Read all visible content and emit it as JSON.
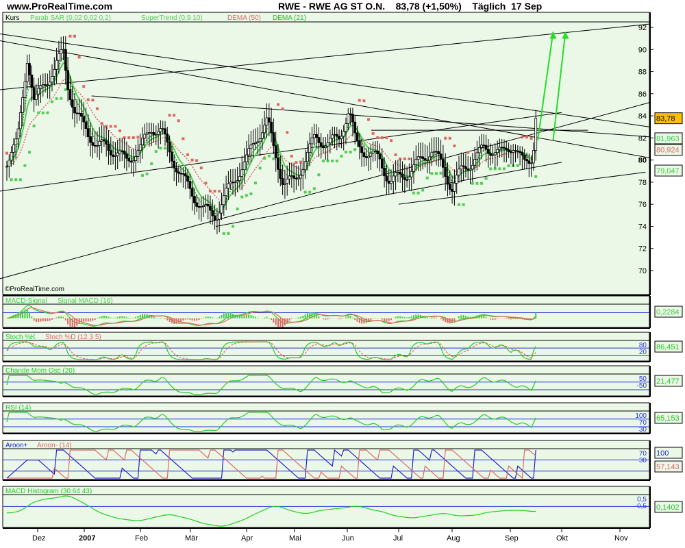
{
  "header": {
    "site": "www.ProRealTime.com",
    "title": "RWE - RWE AG ST O.N.    83,78 (+1,50%)    Täglich  17 Sep"
  },
  "watermark": "©ProRealTime.com",
  "main_legend": [
    {
      "text": "Kurs",
      "color": "#000000"
    },
    {
      "text": "Parab SAR (0,02 0,02 0,2)",
      "color": "#55cc55"
    },
    {
      "text": "SuperTrend (0,9 10)",
      "color": "#55cc55"
    },
    {
      "text": "DEMA (50)",
      "color": "#e06666"
    },
    {
      "text": "DEMA (21)",
      "color": "#22bb22"
    }
  ],
  "panels": [
    {
      "id": "macd",
      "legend": [
        {
          "text": "MACD-Signal ",
          "color": "#44cc44"
        },
        {
          "text": "Signal MACD (16)",
          "color": "#44cc44"
        }
      ],
      "value": "0,2284",
      "value_color": "#44cc44"
    },
    {
      "id": "stoch",
      "legend": [
        {
          "text": "Stoch %K ",
          "color": "#22cc22"
        },
        {
          "text": "Stoch %D (12 3 5)",
          "color": "#e06666"
        }
      ],
      "value": "86,451",
      "value_color": "#22cc22",
      "levels": [
        "80",
        "20"
      ]
    },
    {
      "id": "chande",
      "legend": [
        {
          "text": "Chande Mom Osc (20)",
          "color": "#22cc22"
        }
      ],
      "value": "21,477",
      "value_color": "#22cc22",
      "levels": [
        "50",
        "-50"
      ]
    },
    {
      "id": "rsi",
      "legend": [
        {
          "text": "RSI (14)",
          "color": "#22cc22"
        }
      ],
      "value": "65,153",
      "value_color": "#22cc22",
      "levels": [
        "100",
        "70",
        "30"
      ]
    },
    {
      "id": "aroon",
      "legend": [
        {
          "text": "Aroon+ ",
          "color": "#2222cc"
        },
        {
          "text": "Aroon- (14)",
          "color": "#e06666"
        }
      ],
      "value": "100",
      "value_color": "#2222cc",
      "value2": "57,143",
      "value2_color": "#e06666",
      "levels": [
        "70",
        "30"
      ]
    },
    {
      "id": "hist",
      "legend": [
        {
          "text": "MACD Histogram (30 64 43)",
          "color": "#22cc22"
        }
      ],
      "value": "0,1402",
      "value_color": "#22cc22",
      "levels": [
        "0,5",
        "-0,5"
      ]
    }
  ],
  "chart_data": {
    "type": "candlestick",
    "y_ticks": [
      70,
      72,
      74,
      76,
      78,
      80,
      82,
      84,
      86,
      88,
      90,
      92
    ],
    "ylim": [
      68,
      93.5
    ],
    "x_ticks": [
      "Dez",
      "2007",
      "Feb",
      "Mär",
      "Apr",
      "Mai",
      "Jun",
      "Jul",
      "Aug",
      "Sep",
      "Okt",
      "Nov"
    ],
    "last_price": {
      "label": "83,78",
      "color": "#ffc000"
    },
    "price_labels": [
      {
        "label": "81,963",
        "color": "#44cc44",
        "value": 81.963
      },
      {
        "label": "80,924",
        "color": "#e06666",
        "value": 80.924
      },
      {
        "label": "79,047",
        "color": "#44cc44",
        "value": 79.047
      }
    ],
    "closes": [
      [
        "2006-11-13",
        80
      ],
      [
        "2006-11-19",
        81.5
      ],
      [
        "2006-11-25",
        89.5
      ],
      [
        "2006-11-29",
        85
      ],
      [
        "2006-12-05",
        87
      ],
      [
        "2006-12-12",
        88
      ],
      [
        "2006-12-18",
        90
      ],
      [
        "2006-12-21",
        87
      ],
      [
        "2006-12-26",
        84
      ],
      [
        "2007-01-02",
        83
      ],
      [
        "2007-01-08",
        81
      ],
      [
        "2007-01-13",
        81.5
      ],
      [
        "2007-01-19",
        80.5
      ],
      [
        "2007-01-24",
        80
      ],
      [
        "2007-02-01",
        81
      ],
      [
        "2007-02-07",
        83
      ],
      [
        "2007-02-13",
        82.5
      ],
      [
        "2007-02-18",
        80.5
      ],
      [
        "2007-02-24",
        78.5
      ],
      [
        "2007-03-02",
        77
      ],
      [
        "2007-03-08",
        75.5
      ],
      [
        "2007-03-15",
        75
      ],
      [
        "2007-03-21",
        77
      ],
      [
        "2007-03-26",
        78.5
      ],
      [
        "2007-04-01",
        80
      ],
      [
        "2007-04-07",
        82
      ],
      [
        "2007-04-14",
        83.5
      ],
      [
        "2007-04-18",
        81
      ],
      [
        "2007-04-24",
        78
      ],
      [
        "2007-05-01",
        78
      ],
      [
        "2007-05-07",
        80
      ],
      [
        "2007-05-13",
        82
      ],
      [
        "2007-05-21",
        81.5
      ],
      [
        "2007-05-27",
        82
      ],
      [
        "2007-06-02",
        84.5
      ],
      [
        "2007-06-06",
        81.5
      ],
      [
        "2007-06-14",
        80.5
      ],
      [
        "2007-06-20",
        80
      ],
      [
        "2007-06-26",
        78
      ],
      [
        "2007-07-02",
        78.5
      ],
      [
        "2007-07-08",
        79
      ],
      [
        "2007-07-14",
        80
      ],
      [
        "2007-07-20",
        81
      ],
      [
        "2007-07-26",
        79.5
      ],
      [
        "2007-08-01",
        77.5
      ],
      [
        "2007-08-06",
        79
      ],
      [
        "2007-08-12",
        80
      ],
      [
        "2007-08-18",
        81
      ],
      [
        "2007-08-23",
        81
      ],
      [
        "2007-08-28",
        80.5
      ],
      [
        "2007-09-03",
        81.5
      ],
      [
        "2007-09-09",
        79.5
      ],
      [
        "2007-09-13",
        80
      ],
      [
        "2007-09-17",
        83.78
      ]
    ],
    "trendlines": [
      [
        [
          "2006-11-05",
          86.3
        ],
        [
          "2007-11-20",
          92.3
        ]
      ],
      [
        [
          "2006-11-05",
          91.5
        ],
        [
          "2007-11-20",
          83.0
        ]
      ],
      [
        [
          "2006-11-05",
          90.9
        ],
        [
          "2007-11-20",
          80.2
        ]
      ],
      [
        [
          "2006-11-05",
          69.1
        ],
        [
          "2007-11-20",
          85.2
        ]
      ],
      [
        [
          "2006-11-05",
          77.1
        ],
        [
          "2007-10-01",
          84.3
        ]
      ],
      [
        [
          "2007-03-15",
          74.0
        ],
        [
          "2007-10-01",
          79.8
        ]
      ],
      [
        [
          "2007-01-05",
          85.8
        ],
        [
          "2007-11-20",
          82.1
        ]
      ],
      [
        [
          "2007-06-15",
          82.7
        ],
        [
          "2007-10-15",
          82.7
        ]
      ],
      [
        [
          "2007-07-01",
          76.0
        ],
        [
          "2007-11-15",
          78.9
        ]
      ]
    ],
    "arrows": [
      [
        [
          "2007-09-17",
          81.8
        ],
        [
          "2007-09-26",
          91.6
        ]
      ],
      [
        [
          "2007-09-26",
          81.8
        ],
        [
          "2007-10-03",
          91.6
        ]
      ]
    ]
  }
}
